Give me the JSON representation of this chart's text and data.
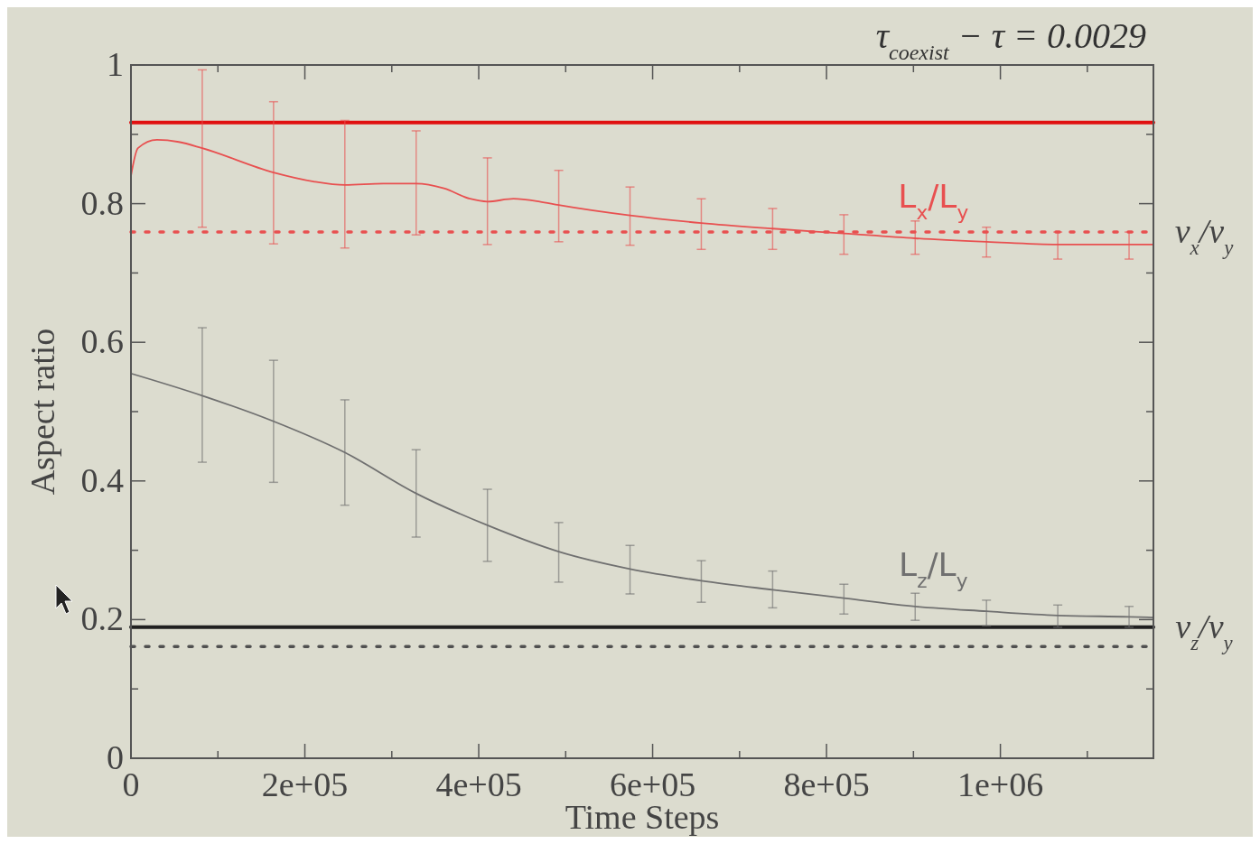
{
  "chart_data": {
    "type": "line",
    "title": "τ$_{coexist}$ − τ = 0.0029",
    "xlabel": "Time Steps",
    "ylabel": "Aspect ratio",
    "xlim": [
      0,
      1176000
    ],
    "xticks": [
      0,
      {
        "value": 100000,
        "label": null
      },
      {
        "value": 200000,
        "label": "2e+05"
      },
      {
        "value": 300000,
        "label": null
      },
      {
        "value": 400000,
        "label": "4e+05"
      },
      {
        "value": 500000,
        "label": null
      },
      {
        "value": 600000,
        "label": "6e+05"
      },
      {
        "value": 700000,
        "label": null
      },
      {
        "value": 800000,
        "label": "8e+05"
      },
      {
        "value": 900000,
        "label": null
      },
      {
        "value": 1000000,
        "label": "1e+06"
      },
      {
        "value": 1100000,
        "label": null
      }
    ],
    "ylim": [
      0,
      1
    ],
    "yticks": [
      0,
      {
        "value": 0.1,
        "label": null
      },
      0.2,
      {
        "value": 0.3,
        "label": null
      },
      0.4,
      {
        "value": 0.5,
        "label": null
      },
      0.6,
      {
        "value": 0.7,
        "label": null
      },
      0.8,
      {
        "value": 0.9,
        "label": null
      },
      1
    ],
    "series": [
      {
        "name": "L$_{x}$/L$_{y}$",
        "color": "#e85050",
        "x": [
          0,
          8000,
          30000,
          55000,
          82000,
          164000,
          210000,
          246000,
          290000,
          328000,
          360000,
          390000,
          410000,
          440000,
          470000,
          492000,
          574000,
          656000,
          738000,
          820000,
          902000,
          984000,
          1066000,
          1148000,
          1176000
        ],
        "values": [
          0.84,
          0.88,
          0.892,
          0.889,
          0.88,
          0.845,
          0.832,
          0.827,
          0.829,
          0.829,
          0.822,
          0.807,
          0.803,
          0.807,
          0.803,
          0.798,
          0.783,
          0.772,
          0.764,
          0.757,
          0.75,
          0.745,
          0.741,
          0.741,
          0.741
        ],
        "errors": [
          null,
          null,
          null,
          null,
          [
            0.766,
            0.993
          ],
          [
            0.742,
            0.947
          ],
          null,
          [
            0.736,
            0.92
          ],
          null,
          [
            0.755,
            0.905
          ],
          null,
          null,
          [
            0.741,
            0.866
          ],
          null,
          null,
          [
            0.745,
            0.848
          ],
          [
            0.74,
            0.824
          ],
          [
            0.734,
            0.807
          ],
          [
            0.734,
            0.793
          ],
          [
            0.727,
            0.784
          ],
          [
            0.727,
            0.775
          ],
          [
            0.723,
            0.766
          ],
          [
            0.72,
            0.759
          ],
          [
            0.72,
            0.759
          ],
          null
        ]
      },
      {
        "name": "L$_{z}$/L$_{y}$",
        "color": "#707070",
        "x": [
          0,
          82000,
          164000,
          246000,
          328000,
          410000,
          492000,
          574000,
          656000,
          738000,
          820000,
          902000,
          984000,
          1066000,
          1148000,
          1176000
        ],
        "values": [
          0.555,
          0.523,
          0.486,
          0.441,
          0.382,
          0.336,
          0.298,
          0.273,
          0.256,
          0.243,
          0.231,
          0.219,
          0.212,
          0.206,
          0.204,
          0.203
        ],
        "errors": [
          null,
          [
            0.427,
            0.621
          ],
          [
            0.398,
            0.574
          ],
          [
            0.365,
            0.517
          ],
          [
            0.319,
            0.445
          ],
          [
            0.284,
            0.388
          ],
          [
            0.254,
            0.34
          ],
          [
            0.237,
            0.307
          ],
          [
            0.225,
            0.285
          ],
          [
            0.217,
            0.27
          ],
          [
            0.208,
            0.251
          ],
          [
            0.199,
            0.238
          ],
          [
            0.191,
            0.228
          ],
          [
            0.189,
            0.221
          ],
          [
            0.189,
            0.219
          ],
          null
        ]
      }
    ],
    "ref_lines": [
      {
        "axis": "y",
        "value": 0.917,
        "color": "#e01010",
        "line_style": "solid"
      },
      {
        "axis": "y",
        "value": 0.759,
        "color": "#e85050",
        "line_style": "dotted",
        "label": "v$_{x}$/v$_{y}$"
      },
      {
        "axis": "y",
        "value": 0.189,
        "color": "#202020",
        "line_style": "solid",
        "label": "v$_{z}$/v$_{y}$"
      },
      {
        "axis": "y",
        "value": 0.161,
        "color": "#505050",
        "line_style": "dotted"
      }
    ]
  }
}
